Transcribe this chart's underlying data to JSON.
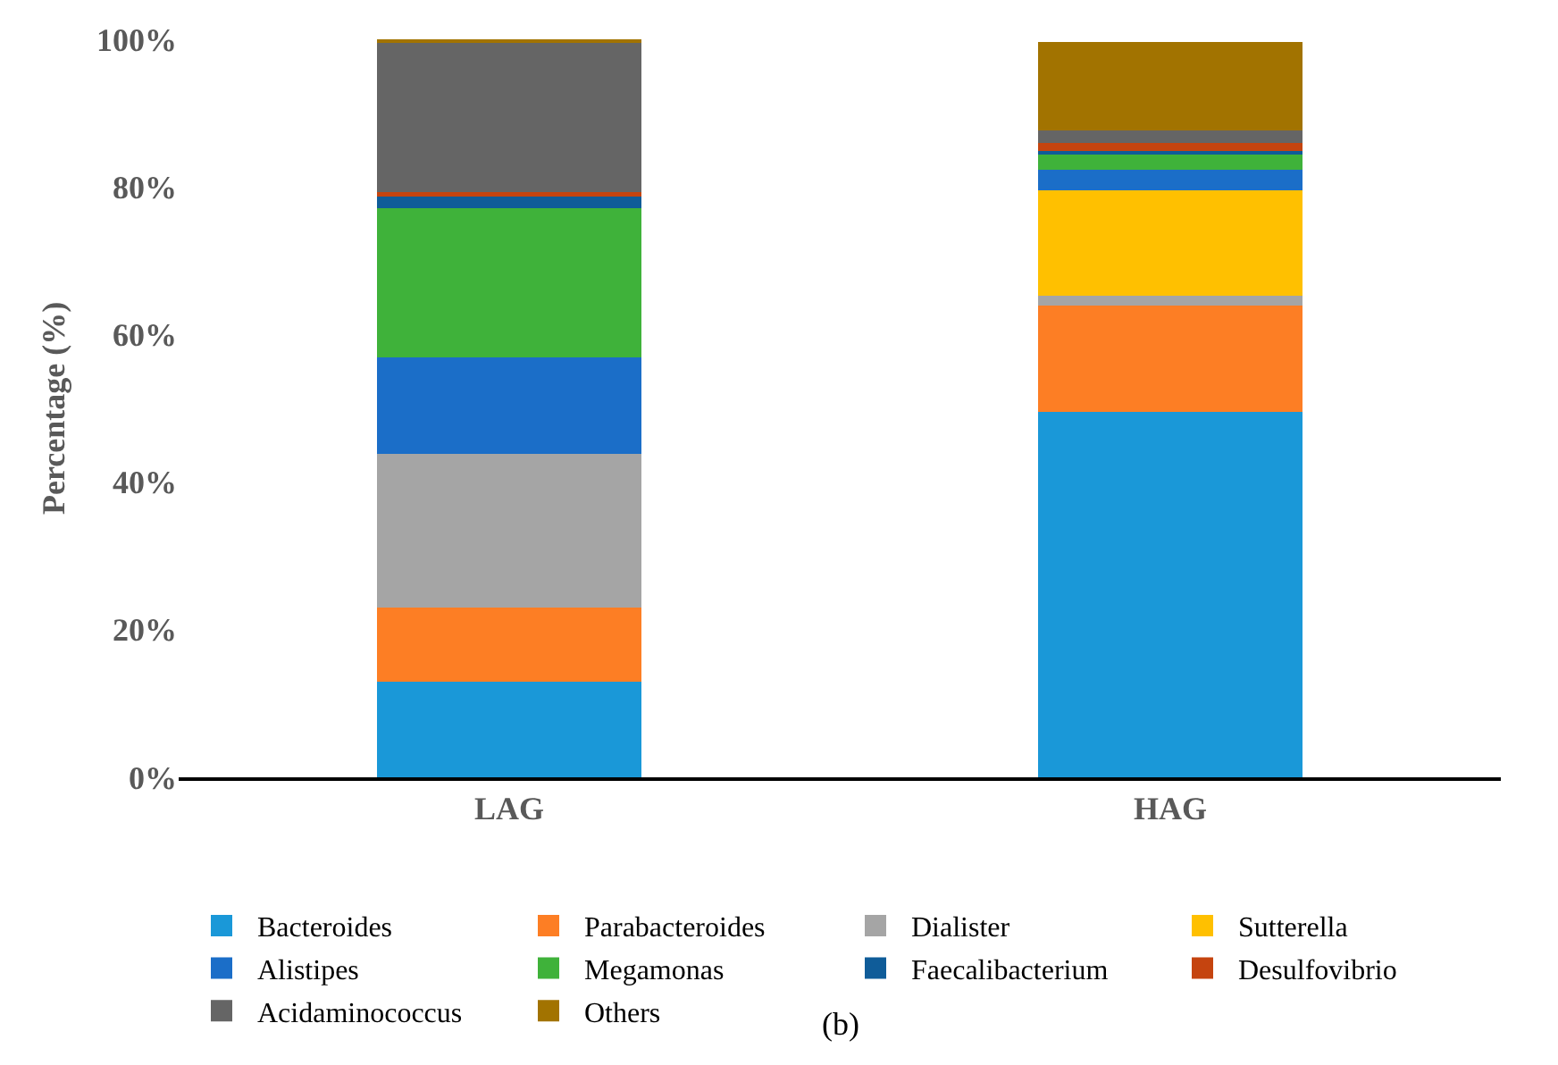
{
  "chart_data": {
    "type": "bar",
    "stacked": true,
    "categories": [
      "LAG",
      "HAG"
    ],
    "ylabel": "Percentage (%)",
    "ylim": [
      0,
      100
    ],
    "yticks": [
      {
        "value": 0,
        "label": "0%"
      },
      {
        "value": 20,
        "label": "20%"
      },
      {
        "value": 40,
        "label": "40%"
      },
      {
        "value": 60,
        "label": "60%"
      },
      {
        "value": 80,
        "label": "80%"
      },
      {
        "value": 100,
        "label": "100%"
      }
    ],
    "grid": false,
    "legend": "bottom",
    "annotations": [
      "(b)"
    ],
    "series": [
      {
        "name": "Bacteroides",
        "color": "#1a98d8",
        "values": [
          13,
          49.5
        ]
      },
      {
        "name": "Parabacteroides",
        "color": "#fd7e24",
        "values": [
          10,
          14.4
        ]
      },
      {
        "name": "Dialister",
        "color": "#a5a5a5",
        "values": [
          20.8,
          1.4
        ]
      },
      {
        "name": "Sutterella",
        "color": "#ffc000",
        "values": [
          0,
          14.3
        ]
      },
      {
        "name": "Alistipes",
        "color": "#1b6ec8",
        "values": [
          13.1,
          2.7
        ]
      },
      {
        "name": "Megamonas",
        "color": "#3fb23a",
        "values": [
          20.2,
          2.1
        ]
      },
      {
        "name": "Faecalibacterium",
        "color": "#0f5c99",
        "values": [
          1.6,
          0.5
        ]
      },
      {
        "name": "Desulfovibrio",
        "color": "#c5440f",
        "values": [
          0.6,
          1.0
        ]
      },
      {
        "name": "Acidaminococcus",
        "color": "#656565",
        "values": [
          20.2,
          1.8
        ]
      },
      {
        "name": "Others",
        "color": "#a27300",
        "values": [
          0.5,
          11.9
        ]
      }
    ]
  }
}
